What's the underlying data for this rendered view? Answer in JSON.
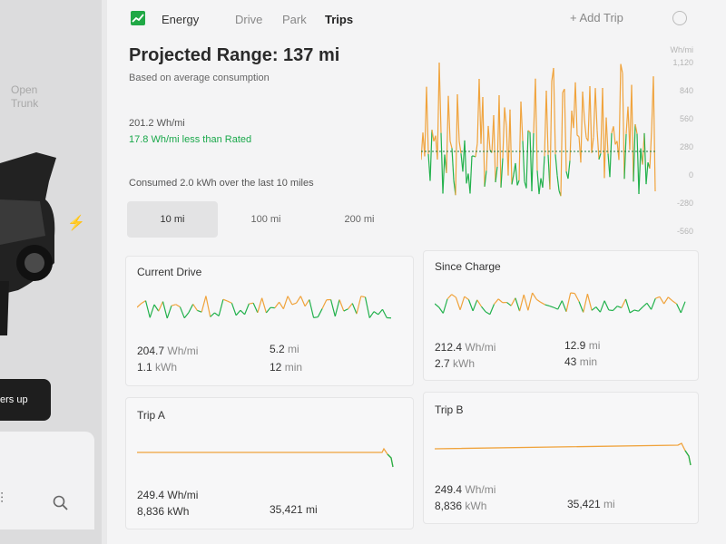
{
  "left": {
    "open_trunk": [
      "Open",
      "Trunk"
    ],
    "button_label": "ers up"
  },
  "nav": {
    "tabs": [
      {
        "label": "Energy",
        "active": false
      },
      {
        "label": "Drive",
        "active": false
      },
      {
        "label": "Park",
        "active": false
      },
      {
        "label": "Trips",
        "active": true
      }
    ],
    "add_trip": "+ Add Trip"
  },
  "summary": {
    "title": "Projected Range: 137 mi",
    "subtitle": "Based on average consumption",
    "wh_per_mi": "201.2 Wh/mi",
    "vs_rated": "17.8 Wh/mi less than Rated",
    "consumed": "Consumed 2.0 kWh over the last 10 miles",
    "range_options": [
      "10 mi",
      "100 mi",
      "200 mi"
    ],
    "range_selected": 0
  },
  "chart": {
    "y_ticks": [
      "Wh/mi",
      "1,120",
      "840",
      "560",
      "280",
      "0",
      "-280",
      "-560"
    ],
    "rated_line": 280,
    "colors": {
      "above": "#f0a33c",
      "below": "#22b14c",
      "rated": "#1a7a36"
    }
  },
  "cards": {
    "current_drive": {
      "title": "Current Drive",
      "avg_value": "204.7",
      "avg_unit": "Wh/mi",
      "energy_value": "1.1",
      "energy_unit": "kWh",
      "distance_value": "5.2",
      "distance_unit": "mi",
      "time_value": "12",
      "time_unit": "min"
    },
    "since_charge": {
      "title": "Since Charge",
      "avg_value": "212.4",
      "avg_unit": "Wh/mi",
      "energy_value": "2.7",
      "energy_unit": "kWh",
      "distance_value": "12.9",
      "distance_unit": "mi",
      "time_value": "43",
      "time_unit": "min"
    },
    "trip_a": {
      "title": "Trip A",
      "avg_value": "249.4",
      "avg_unit": "Wh/mi",
      "energy_value": "8,836",
      "energy_unit": "kWh",
      "distance_value": "35,421",
      "distance_unit": "mi"
    },
    "trip_b": {
      "title": "Trip B",
      "avg_value": "249.4",
      "avg_unit": "Wh/mi",
      "energy_value": "8,836",
      "energy_unit": "kWh",
      "distance_value": "35,421",
      "distance_unit": "mi"
    }
  }
}
